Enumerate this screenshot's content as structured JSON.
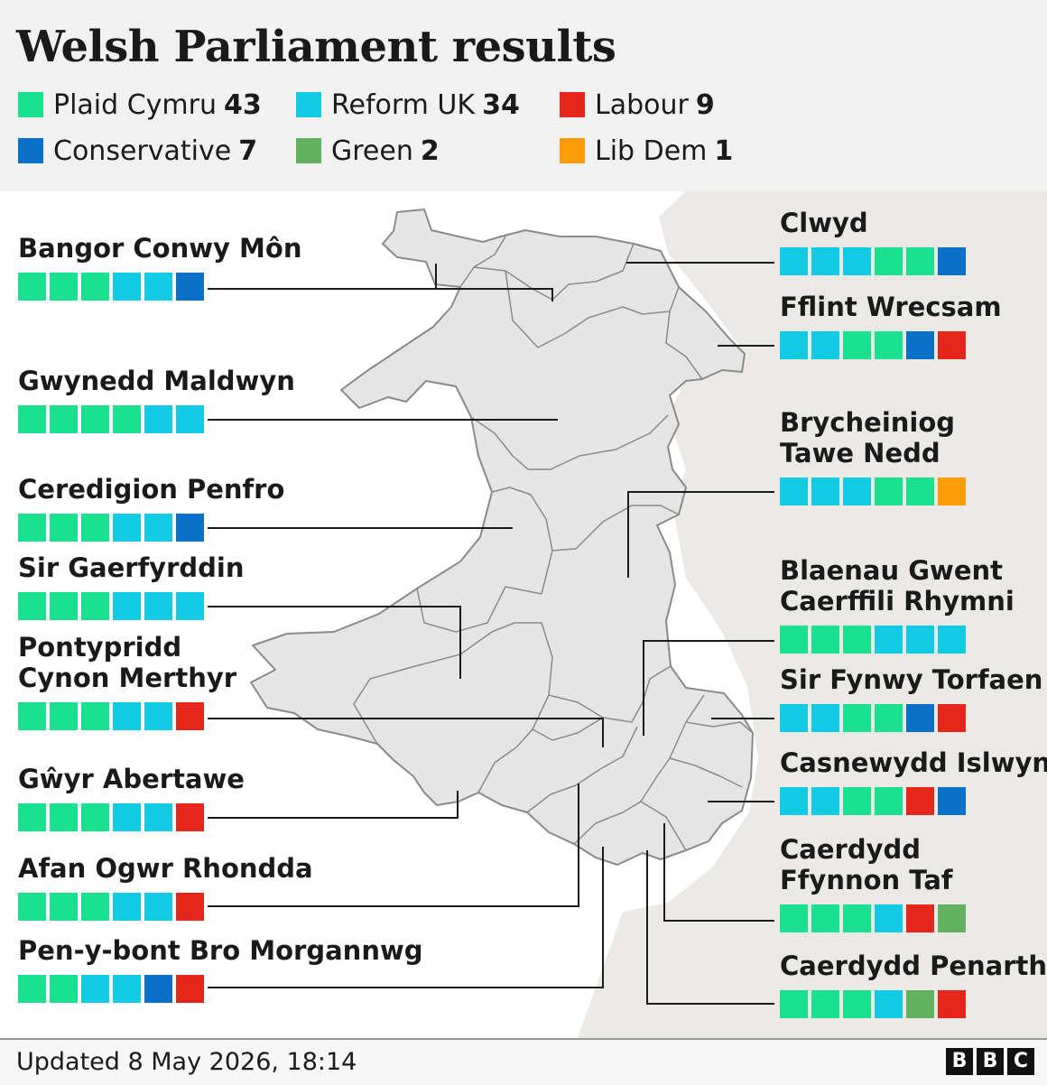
{
  "title": "Welsh Parliament results",
  "colors": {
    "plaid": "#1be08f",
    "reform": "#12cbe3",
    "labour": "#e4271a",
    "conservative": "#0b70c8",
    "green": "#60b25e",
    "libdem": "#fc9c08"
  },
  "legend": [
    {
      "party": "Plaid Cymru",
      "seats": "43",
      "key": "plaid"
    },
    {
      "party": "Reform UK",
      "seats": "34",
      "key": "reform"
    },
    {
      "party": "Labour",
      "seats": "9",
      "key": "labour"
    },
    {
      "party": "Conservative",
      "seats": "7",
      "key": "conservative"
    },
    {
      "party": "Green",
      "seats": "2",
      "key": "green"
    },
    {
      "party": "Lib Dem",
      "seats": "1",
      "key": "libdem"
    }
  ],
  "regions": [
    {
      "name": "Bangor Conwy Môn",
      "seats": [
        "plaid",
        "plaid",
        "plaid",
        "reform",
        "reform",
        "conservative"
      ]
    },
    {
      "name": "Gwynedd Maldwyn",
      "seats": [
        "plaid",
        "plaid",
        "plaid",
        "plaid",
        "reform",
        "reform"
      ]
    },
    {
      "name": "Ceredigion Penfro",
      "seats": [
        "plaid",
        "plaid",
        "plaid",
        "reform",
        "reform",
        "conservative"
      ]
    },
    {
      "name": "Sir Gaerfyrddin",
      "seats": [
        "plaid",
        "plaid",
        "plaid",
        "reform",
        "reform",
        "reform"
      ]
    },
    {
      "name": "Pontypridd Cynon Merthyr",
      "seats": [
        "plaid",
        "plaid",
        "plaid",
        "reform",
        "reform",
        "labour"
      ]
    },
    {
      "name": "Gŵyr Abertawe",
      "seats": [
        "plaid",
        "plaid",
        "plaid",
        "reform",
        "reform",
        "labour"
      ]
    },
    {
      "name": "Afan Ogwr Rhondda",
      "seats": [
        "plaid",
        "plaid",
        "plaid",
        "reform",
        "reform",
        "labour"
      ]
    },
    {
      "name": "Pen-y-bont Bro Morgannwg",
      "seats": [
        "plaid",
        "plaid",
        "reform",
        "reform",
        "conservative",
        "labour"
      ]
    },
    {
      "name": "Clwyd",
      "seats": [
        "reform",
        "reform",
        "reform",
        "plaid",
        "plaid",
        "conservative"
      ]
    },
    {
      "name": "Fflint Wrecsam",
      "seats": [
        "reform",
        "reform",
        "plaid",
        "plaid",
        "conservative",
        "labour"
      ]
    },
    {
      "name": "Brycheiniog Tawe Nedd",
      "seats": [
        "reform",
        "reform",
        "reform",
        "plaid",
        "plaid",
        "libdem"
      ]
    },
    {
      "name": "Blaenau Gwent Caerffili Rhymni",
      "seats": [
        "plaid",
        "plaid",
        "plaid",
        "reform",
        "reform",
        "reform"
      ]
    },
    {
      "name": "Sir Fynwy Torfaen",
      "seats": [
        "reform",
        "reform",
        "plaid",
        "plaid",
        "conservative",
        "labour"
      ]
    },
    {
      "name": "Casnewydd Islwyn",
      "seats": [
        "reform",
        "reform",
        "plaid",
        "plaid",
        "labour",
        "conservative"
      ]
    },
    {
      "name": "Caerdydd Ffynnon Taf",
      "seats": [
        "plaid",
        "plaid",
        "plaid",
        "reform",
        "labour",
        "green"
      ]
    },
    {
      "name": "Caerdydd Penarth",
      "seats": [
        "plaid",
        "plaid",
        "plaid",
        "reform",
        "green",
        "labour"
      ]
    }
  ],
  "footer": {
    "updated": "Updated 8 May 2026, 18:14",
    "logo": [
      "B",
      "B",
      "C"
    ]
  }
}
